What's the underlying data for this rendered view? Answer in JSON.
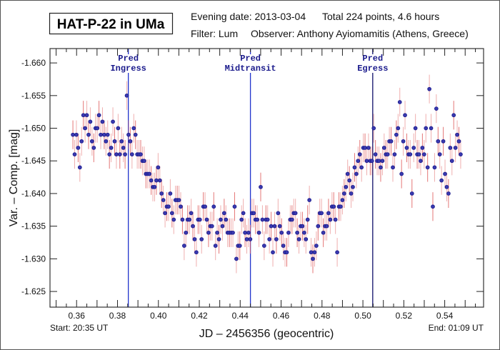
{
  "header": {
    "title": "HAT-P-22 in UMa",
    "evening_date": "Evening date: 2013-03-04",
    "total": "Total 224 points, 4.6 hours",
    "filter": "Filter: Lum",
    "observer": "Observer: Anthony Ayiomamitis (Athens, Greece)"
  },
  "footer": {
    "start": "Start: 20:35 UT",
    "end": "End: 01:09 UT"
  },
  "chart_data": {
    "type": "scatter",
    "title": "HAT-P-22 in UMa",
    "xlabel": "JD – 2456356  (geocentric)",
    "ylabel": "Var. – Comp. [mag]",
    "xlim": [
      0.347,
      0.559
    ],
    "ylim": [
      -1.6622,
      -1.6226
    ],
    "y_inverted": true,
    "x_ticks": [
      "0.36",
      "0.38",
      "0.40",
      "0.42",
      "0.44",
      "0.46",
      "0.48",
      "0.50",
      "0.52",
      "0.54"
    ],
    "y_ticks": [
      "-1.660",
      "-1.655",
      "-1.650",
      "-1.645",
      "-1.640",
      "-1.635",
      "-1.630",
      "-1.625"
    ],
    "markers": [
      {
        "label1": "Pred",
        "label2": "Ingress",
        "x": 0.3853,
        "color": "#2233cc"
      },
      {
        "label1": "Pred",
        "label2": "Midtransit",
        "x": 0.445,
        "color": "#2233cc"
      },
      {
        "label1": "Pred",
        "label2": "Egress",
        "x": 0.5048,
        "color": "#10106a"
      }
    ],
    "point_color": "#1a1a8c",
    "errorbar_color": "#e06060",
    "errorbar": 0.0022,
    "x_start": 0.3582,
    "x_end": 0.5478,
    "y": [
      -1.649,
      -1.646,
      -1.649,
      -1.647,
      -1.644,
      -1.648,
      -1.652,
      -1.65,
      -1.652,
      -1.649,
      -1.651,
      -1.648,
      -1.647,
      -1.65,
      -1.65,
      -1.652,
      -1.649,
      -1.651,
      -1.649,
      -1.648,
      -1.649,
      -1.646,
      -1.647,
      -1.651,
      -1.648,
      -1.646,
      -1.65,
      -1.646,
      -1.648,
      -1.647,
      -1.646,
      -1.655,
      -1.649,
      -1.648,
      -1.646,
      -1.65,
      -1.649,
      -1.646,
      -1.646,
      -1.646,
      -1.645,
      -1.645,
      -1.643,
      -1.643,
      -1.643,
      -1.642,
      -1.641,
      -1.641,
      -1.642,
      -1.644,
      -1.642,
      -1.64,
      -1.639,
      -1.637,
      -1.638,
      -1.638,
      -1.64,
      -1.637,
      -1.636,
      -1.639,
      -1.639,
      -1.639,
      -1.638,
      -1.636,
      -1.632,
      -1.634,
      -1.636,
      -1.636,
      -1.637,
      -1.635,
      -1.633,
      -1.631,
      -1.636,
      -1.636,
      -1.633,
      -1.638,
      -1.638,
      -1.636,
      -1.634,
      -1.635,
      -1.635,
      -1.638,
      -1.632,
      -1.634,
      -1.633,
      -1.636,
      -1.635,
      -1.637,
      -1.636,
      -1.634,
      -1.634,
      -1.634,
      -1.634,
      -1.638,
      -1.63,
      -1.632,
      -1.632,
      -1.636,
      -1.637,
      -1.634,
      -1.633,
      -1.634,
      -1.633,
      -1.637,
      -1.637,
      -1.636,
      -1.636,
      -1.634,
      -1.641,
      -1.636,
      -1.632,
      -1.636,
      -1.636,
      -1.633,
      -1.635,
      -1.631,
      -1.635,
      -1.633,
      -1.637,
      -1.635,
      -1.634,
      -1.632,
      -1.631,
      -1.631,
      -1.634,
      -1.636,
      -1.636,
      -1.637,
      -1.637,
      -1.634,
      -1.633,
      -1.635,
      -1.635,
      -1.634,
      -1.633,
      -1.636,
      -1.639,
      -1.631,
      -1.63,
      -1.631,
      -1.632,
      -1.635,
      -1.637,
      -1.637,
      -1.634,
      -1.635,
      -1.635,
      -1.637,
      -1.636,
      -1.638,
      -1.638,
      -1.636,
      -1.631,
      -1.638,
      -1.638,
      -1.639,
      -1.64,
      -1.641,
      -1.643,
      -1.642,
      -1.64,
      -1.641,
      -1.644,
      -1.643,
      -1.645,
      -1.646,
      -1.644,
      -1.647,
      -1.647,
      -1.645,
      -1.647,
      -1.645,
      -1.645,
      -1.65,
      -1.646,
      -1.645,
      -1.645,
      -1.644,
      -1.645,
      -1.647,
      -1.646,
      -1.646,
      -1.648,
      -1.648,
      -1.644,
      -1.646,
      -1.649,
      -1.65,
      -1.654,
      -1.643,
      -1.648,
      -1.652,
      -1.647,
      -1.646,
      -1.646,
      -1.64,
      -1.647,
      -1.65,
      -1.646,
      -1.646,
      -1.645,
      -1.647,
      -1.646,
      -1.65,
      -1.644,
      -1.656,
      -1.65,
      -1.638,
      -1.644,
      -1.653,
      -1.648,
      -1.646,
      -1.642,
      -1.648,
      -1.643,
      -1.641,
      -1.64,
      -1.647,
      -1.645,
      -1.652,
      -1.647,
      -1.649,
      -1.648,
      -1.646
    ]
  }
}
